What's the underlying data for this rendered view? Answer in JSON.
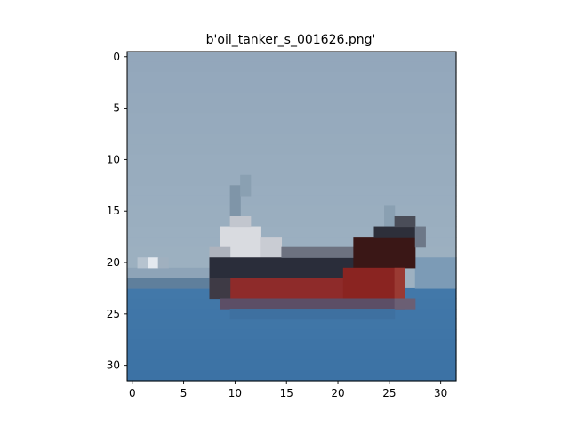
{
  "title": "b'oil_tanker_s_001626.png'",
  "image": {
    "description_icon": "pixelated-ship-photo",
    "grid_size": [
      32,
      32
    ],
    "colors": {
      "sky": "#93a7bb",
      "sky_low": "#9fb3c4",
      "sea": "#3f75a6",
      "sea_dark": "#36679a",
      "hull_red": "#8e2b2a",
      "hull_dark": "#2a2d3a",
      "superstructure": "#d9dbe0",
      "bow_dark": "#3a1716",
      "mast": "#7f95a8"
    }
  },
  "axes": {
    "x_ticks": [
      "0",
      "5",
      "10",
      "15",
      "20",
      "25",
      "30"
    ],
    "y_ticks": [
      "0",
      "5",
      "10",
      "15",
      "20",
      "25",
      "30"
    ],
    "xlim": [
      -0.5,
      31.5
    ],
    "ylim": [
      31.5,
      -0.5
    ]
  }
}
